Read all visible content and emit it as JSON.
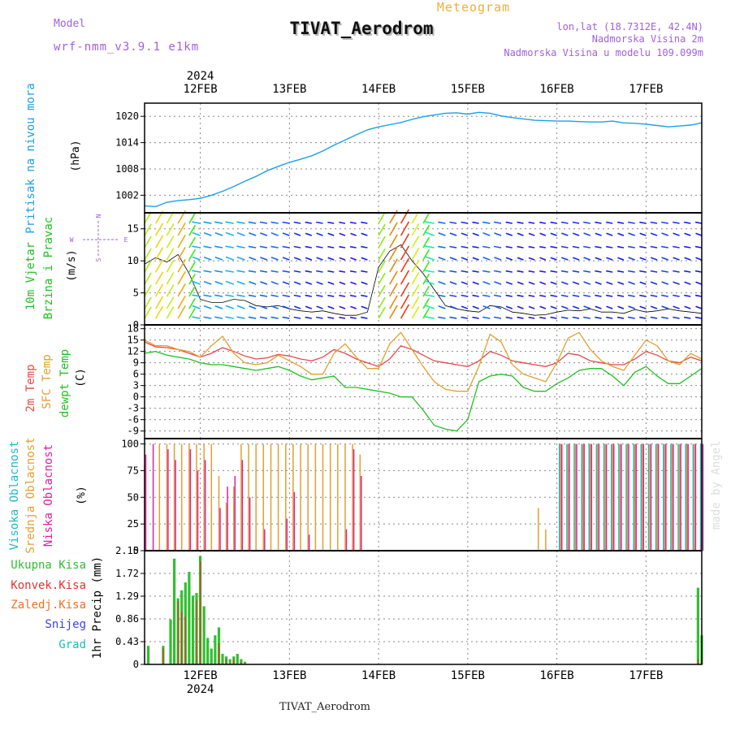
{
  "header": {
    "model_label": "Model",
    "model_name": "wrf-nmm_v3.9.1 e1km",
    "app_title": "Meteogram",
    "station_title": "TIVAT_Aerodrom",
    "lonlat": "lon,lat (18.7312E, 42.4N)",
    "elevation": "Nadmorska Visina 2m",
    "model_elevation": "Nadmorska Visina u modelu 109.099m",
    "footer_station": "TIVAT_Aerodrom",
    "watermark": "made by Angel"
  },
  "colors": {
    "pressure": "#1aa0e6",
    "temp2m": "#e84848",
    "sfctemp": "#e0a030",
    "dewpoint": "#22c022",
    "high_cloud": "#20b8c0",
    "mid_cloud": "#e0a030",
    "low_cloud": "#e020a0",
    "total_precip": "#30c030",
    "convective_precip": "#e83030",
    "frozen_precip": "#f07020",
    "snow": "#4040e0",
    "graupel": "#20b8c0",
    "model_text": "#a060e0",
    "app_title_text": "#f0b030",
    "grid": "#888888"
  },
  "time_axis": {
    "year_label": "2024",
    "days": [
      "12FEB",
      "13FEB",
      "14FEB",
      "15FEB",
      "16FEB",
      "17FEB"
    ],
    "start_hour": -15,
    "end_hour": 135
  },
  "chart_data": [
    {
      "type": "line",
      "panel": "pressure",
      "ylabel_lines": [
        "Pritisak na nivou mora"
      ],
      "unit": "(hPa)",
      "ylim": [
        998,
        1023
      ],
      "ticks": [
        "1002",
        "1008",
        "1014",
        "1020"
      ],
      "x": [
        -15,
        -12,
        -9,
        -6,
        -3,
        0,
        3,
        6,
        9,
        12,
        15,
        18,
        21,
        24,
        27,
        30,
        33,
        36,
        39,
        42,
        45,
        48,
        51,
        54,
        57,
        60,
        63,
        66,
        69,
        72,
        75,
        78,
        81,
        84,
        87,
        90,
        93,
        96,
        99,
        102,
        105,
        108,
        111,
        114,
        117,
        120,
        123,
        126,
        129,
        132,
        135
      ],
      "series": [
        {
          "name": "Pritisak na nivou mora",
          "values": [
            999.6,
            999.4,
            1000.4,
            1000.8,
            1001.0,
            1001.3,
            1002.0,
            1002.9,
            1004.0,
            1005.2,
            1006.3,
            1007.6,
            1008.6,
            1009.5,
            1010.2,
            1011.0,
            1012.1,
            1013.4,
            1014.6,
            1015.8,
            1016.9,
            1017.6,
            1018.1,
            1018.6,
            1019.3,
            1019.9,
            1020.3,
            1020.7,
            1020.8,
            1020.5,
            1020.9,
            1020.7,
            1020.1,
            1019.7,
            1019.4,
            1019.1,
            1019.0,
            1018.9,
            1018.9,
            1018.8,
            1018.7,
            1018.7,
            1018.9,
            1018.5,
            1018.4,
            1018.2,
            1017.9,
            1017.6,
            1017.8,
            1018.0,
            1018.5
          ]
        }
      ]
    },
    {
      "type": "line",
      "panel": "wind",
      "ylabel_lines": [
        "10m Vjetar",
        "Brzina i Pravac"
      ],
      "unit": "(m/s)",
      "compass": [
        "N",
        "W",
        "E",
        "S"
      ],
      "ylim": [
        0,
        17.5
      ],
      "ticks": [
        "0",
        "5",
        "10",
        "15"
      ],
      "x": [
        -15,
        -12,
        -9,
        -6,
        -3,
        0,
        3,
        6,
        9,
        12,
        15,
        18,
        21,
        24,
        27,
        30,
        33,
        36,
        39,
        42,
        45,
        48,
        51,
        54,
        57,
        60,
        63,
        66,
        69,
        72,
        75,
        78,
        81,
        84,
        87,
        90,
        93,
        96,
        99,
        102,
        105,
        108,
        111,
        114,
        117,
        120,
        123,
        126,
        129,
        132,
        135
      ],
      "series": [
        {
          "name": "10m Vjetar",
          "values": [
            9.5,
            10.5,
            9.8,
            11.0,
            8.0,
            4.0,
            3.5,
            3.5,
            4.0,
            3.8,
            3.0,
            2.8,
            3.0,
            2.5,
            2.2,
            2.0,
            2.2,
            1.8,
            1.5,
            1.5,
            2.0,
            9.0,
            11.5,
            12.5,
            10.0,
            8.0,
            5.5,
            3.0,
            2.5,
            2.2,
            2.0,
            3.0,
            2.8,
            2.0,
            1.8,
            1.5,
            1.6,
            2.0,
            2.3,
            2.2,
            2.5,
            2.0,
            2.0,
            1.8,
            2.4,
            2.0,
            2.2,
            2.5,
            2.2,
            2.0,
            1.8
          ]
        }
      ]
    },
    {
      "type": "line",
      "panel": "temperature",
      "ylabel_lines": [
        "2m Temp",
        "SFC Temp",
        "dewpt Temp"
      ],
      "unit": "(C)",
      "ylim": [
        -11,
        19
      ],
      "ticks": [
        "-9",
        "-6",
        "-3",
        "0",
        "3",
        "6",
        "9",
        "12",
        "15",
        "18"
      ],
      "x": [
        -15,
        -12,
        -9,
        -6,
        -3,
        0,
        3,
        6,
        9,
        12,
        15,
        18,
        21,
        24,
        27,
        30,
        33,
        36,
        39,
        42,
        45,
        48,
        51,
        54,
        57,
        60,
        63,
        66,
        69,
        72,
        75,
        78,
        81,
        84,
        87,
        90,
        93,
        96,
        99,
        102,
        105,
        108,
        111,
        114,
        117,
        120,
        123,
        126,
        129,
        132,
        135
      ],
      "series": [
        {
          "name": "2m Temp",
          "values": [
            14.5,
            13.2,
            13.0,
            12.5,
            11.5,
            10.5,
            11.5,
            13.0,
            12.0,
            10.8,
            10.0,
            10.3,
            11.2,
            10.8,
            10.0,
            9.5,
            10.5,
            12.5,
            11.5,
            10.0,
            9.0,
            8.0,
            10.0,
            13.5,
            12.5,
            11.0,
            9.5,
            9.0,
            8.5,
            8.0,
            9.5,
            12.0,
            11.0,
            9.5,
            9.0,
            8.5,
            8.0,
            9.0,
            11.5,
            11.0,
            9.5,
            9.0,
            8.5,
            8.5,
            10.0,
            12.0,
            11.0,
            9.5,
            9.0,
            10.5,
            9.5
          ]
        },
        {
          "name": "SFC Temp",
          "values": [
            15.0,
            13.5,
            13.5,
            12.5,
            12.0,
            10.5,
            13.5,
            16.0,
            11.5,
            9.0,
            8.5,
            9.0,
            11.0,
            9.5,
            8.0,
            6.0,
            6.0,
            11.5,
            14.0,
            10.5,
            7.5,
            7.5,
            14.0,
            17.0,
            12.5,
            8.0,
            4.0,
            2.0,
            1.5,
            1.5,
            8.0,
            16.5,
            14.5,
            8.5,
            6.0,
            5.0,
            4.0,
            9.0,
            15.5,
            17.0,
            12.5,
            9.5,
            8.0,
            7.0,
            11.0,
            15.0,
            13.5,
            9.5,
            8.5,
            11.5,
            10.0
          ]
        },
        {
          "name": "dewpt Temp",
          "values": [
            11.5,
            12.0,
            11.0,
            10.5,
            10.0,
            9.0,
            8.5,
            8.5,
            8.0,
            7.5,
            7.0,
            7.5,
            8.0,
            7.0,
            5.5,
            4.5,
            5.0,
            5.5,
            2.5,
            2.5,
            2.0,
            1.5,
            1.0,
            0.0,
            0.0,
            -3.5,
            -7.5,
            -8.5,
            -9.0,
            -6.0,
            4.0,
            5.5,
            6.0,
            5.5,
            2.5,
            1.5,
            1.5,
            3.5,
            5.0,
            7.0,
            7.5,
            7.5,
            5.5,
            3.0,
            6.5,
            8.0,
            5.5,
            3.5,
            3.5,
            5.5,
            7.5
          ]
        }
      ]
    },
    {
      "type": "bar",
      "panel": "clouds",
      "ylabel_lines": [
        "Visoka Oblacnost",
        "Srednja Oblacnost",
        "Niska Oblacnost"
      ],
      "unit": "(%)",
      "ylim": [
        0,
        105
      ],
      "ticks": [
        "0",
        "25",
        "50",
        "75",
        "100"
      ],
      "x": [
        -15,
        -13,
        -11,
        -9,
        -7,
        -5,
        -3,
        -1,
        1,
        3,
        5,
        7,
        9,
        11,
        13,
        15,
        17,
        19,
        21,
        23,
        25,
        27,
        29,
        31,
        33,
        35,
        37,
        39,
        41,
        43,
        45,
        47,
        49,
        51,
        53,
        55,
        57,
        59,
        61,
        63,
        65,
        67,
        69,
        71,
        73,
        75,
        77,
        79,
        81,
        83,
        85,
        87,
        89,
        91,
        93,
        95,
        97,
        99,
        101,
        103,
        105,
        107,
        109,
        111,
        113,
        115,
        117,
        119,
        121,
        123,
        125,
        127,
        129,
        131,
        133,
        135
      ],
      "series": [
        {
          "name": "Visoka Oblacnost",
          "values": [
            0,
            0,
            0,
            0,
            0,
            0,
            0,
            0,
            0,
            0,
            0,
            0,
            0,
            0,
            0,
            0,
            0,
            0,
            0,
            0,
            0,
            0,
            0,
            0,
            0,
            0,
            0,
            0,
            0,
            0,
            0,
            0,
            0,
            0,
            0,
            0,
            0,
            0,
            0,
            0,
            0,
            0,
            0,
            0,
            0,
            0,
            0,
            0,
            0,
            0,
            0,
            0,
            0,
            0,
            0,
            0,
            100,
            100,
            100,
            100,
            100,
            100,
            100,
            100,
            100,
            100,
            100,
            100,
            100,
            100,
            100,
            100,
            100,
            100,
            100,
            100
          ]
        },
        {
          "name": "Srednja Oblacnost",
          "values": [
            80,
            0,
            100,
            100,
            100,
            100,
            100,
            100,
            100,
            100,
            70,
            45,
            60,
            100,
            100,
            100,
            100,
            100,
            100,
            100,
            100,
            100,
            100,
            100,
            100,
            100,
            100,
            100,
            100,
            90,
            0,
            0,
            0,
            0,
            0,
            0,
            0,
            0,
            0,
            0,
            0,
            0,
            0,
            0,
            0,
            0,
            0,
            0,
            0,
            0,
            0,
            0,
            0,
            40,
            20,
            0,
            100,
            100,
            100,
            100,
            100,
            100,
            100,
            100,
            100,
            100,
            100,
            100,
            100,
            100,
            100,
            100,
            100,
            100,
            100,
            100
          ]
        },
        {
          "name": "Niska Oblacnost",
          "values": [
            90,
            100,
            0,
            95,
            85,
            0,
            95,
            75,
            85,
            0,
            40,
            60,
            70,
            85,
            50,
            0,
            20,
            0,
            0,
            30,
            55,
            0,
            15,
            0,
            0,
            0,
            0,
            20,
            95,
            70,
            0,
            0,
            0,
            0,
            0,
            0,
            0,
            0,
            0,
            0,
            0,
            0,
            0,
            0,
            0,
            0,
            0,
            0,
            0,
            0,
            0,
            0,
            0,
            0,
            0,
            0,
            100,
            100,
            100,
            100,
            100,
            100,
            100,
            100,
            100,
            100,
            100,
            100,
            100,
            100,
            100,
            100,
            100,
            100,
            100,
            100
          ]
        }
      ]
    },
    {
      "type": "bar",
      "panel": "precipitation",
      "ylabel_lines": [
        "1hr Precip (mm)"
      ],
      "legend": [
        "Ukupna Kisa",
        "Konvek.Kisa",
        "Zaledj.Kisa",
        "Snijeg",
        "Grad"
      ],
      "ylim": [
        0,
        2.15
      ],
      "ticks": [
        "0",
        "0.43",
        "0.86",
        "1.29",
        "1.72",
        "2.15"
      ],
      "x": [
        -14,
        -10,
        -8,
        -7,
        -6,
        -5,
        -4,
        -3,
        -2,
        -1,
        0,
        1,
        2,
        3,
        4,
        5,
        6,
        7,
        8,
        9,
        10,
        11,
        12,
        134,
        135
      ],
      "series": [
        {
          "name": "Ukupna Kisa",
          "values": [
            0.35,
            0.35,
            0.85,
            2.0,
            1.25,
            1.4,
            1.55,
            1.75,
            1.3,
            1.35,
            2.05,
            1.1,
            0.5,
            0.3,
            0.55,
            0.7,
            0.2,
            0.15,
            0.1,
            0.15,
            0.2,
            0.1,
            0.05,
            1.45,
            0.55
          ]
        },
        {
          "name": "Konvek.Kisa",
          "values": [
            0.0,
            0.3,
            0.0,
            0.0,
            1.2,
            1.0,
            0.9,
            0.0,
            0.0,
            1.2,
            1.95,
            0.0,
            0.0,
            0.0,
            0.0,
            0.4,
            0.0,
            0.1,
            0.0,
            0.1,
            0.0,
            0.05,
            0.0,
            0.1,
            0.1
          ]
        }
      ]
    }
  ]
}
